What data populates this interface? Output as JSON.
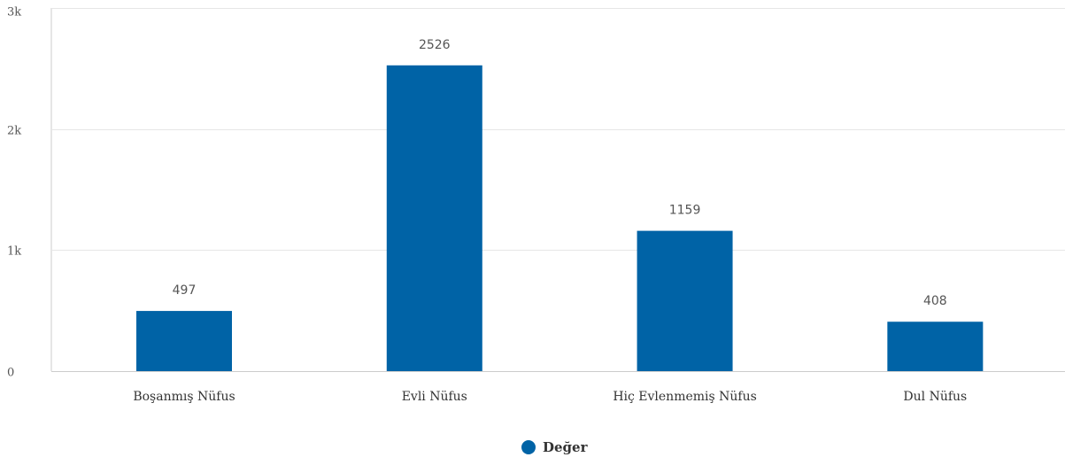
{
  "chart_data": {
    "type": "bar",
    "categories": [
      "Boşanmış Nüfus",
      "Evli Nüfus",
      "Hiç Evlenmemiş Nüfus",
      "Dul Nüfus"
    ],
    "series": [
      {
        "name": "Değer",
        "values": [
          497,
          2526,
          1159,
          408
        ],
        "color": "#0063a6"
      }
    ],
    "ylim": [
      0,
      3000
    ],
    "yticks": [
      0,
      1000,
      2000,
      3000
    ],
    "ytick_labels": [
      "0",
      "1k",
      "2k",
      "3k"
    ],
    "grid": true,
    "legend_position": "bottom-center",
    "data_labels": true
  },
  "colors": {
    "bar": "#0063a6",
    "grid": "#e6e6e6",
    "axis": "#cccccc"
  }
}
